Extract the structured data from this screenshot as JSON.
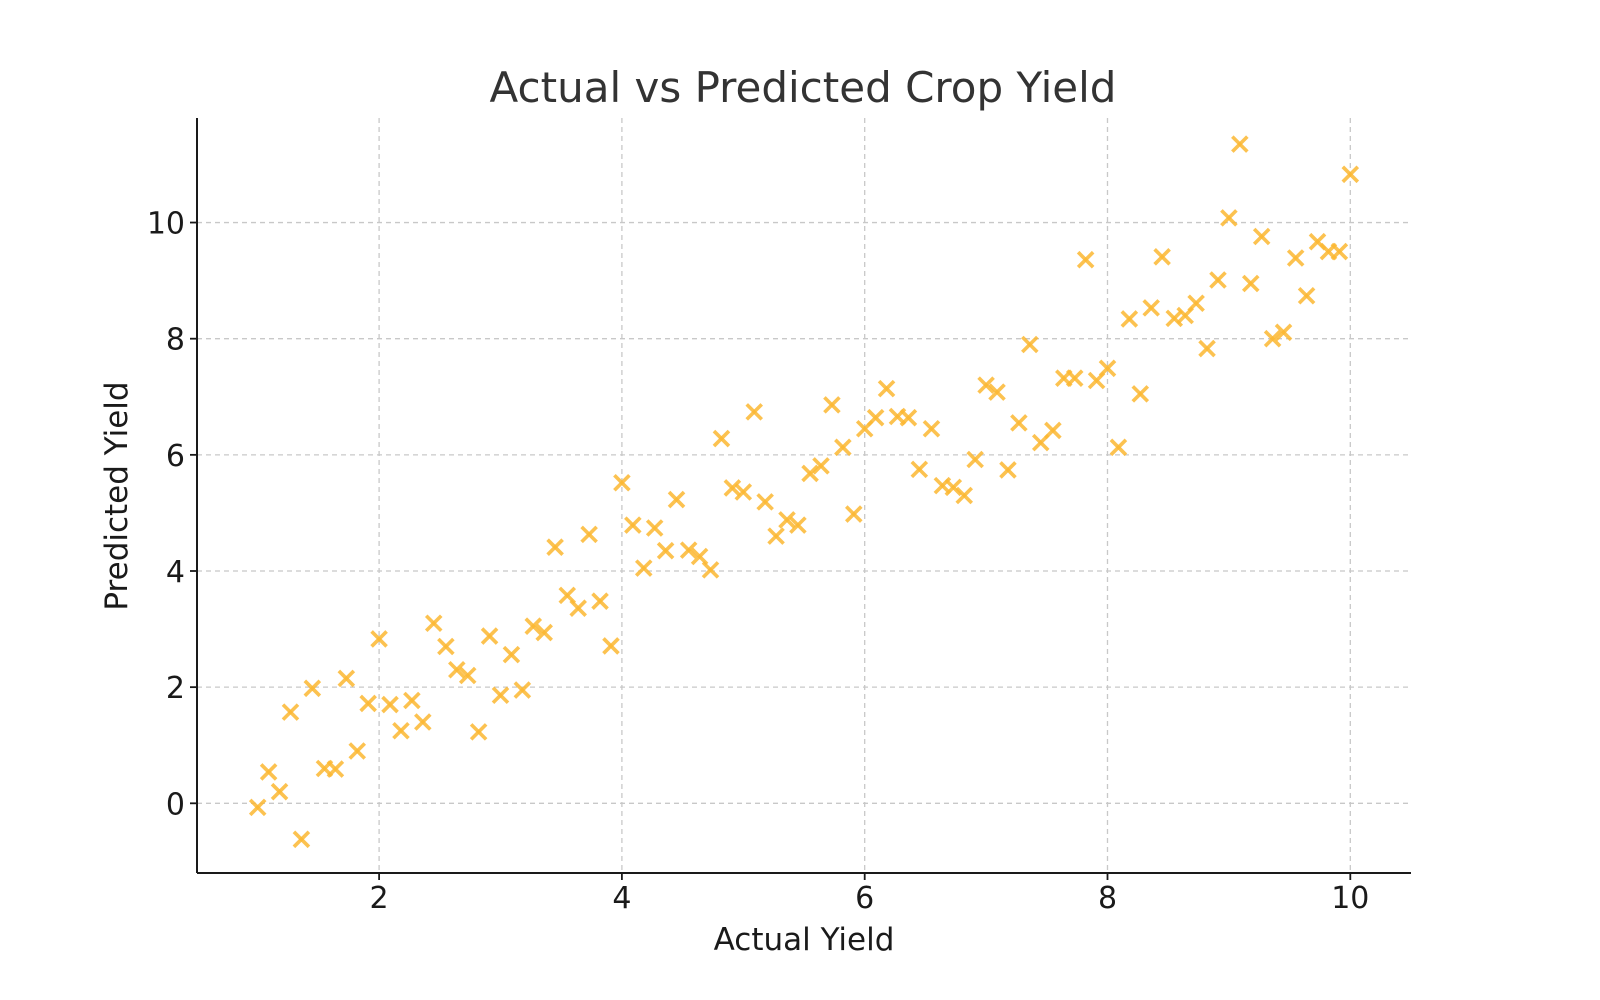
{
  "chart_data": {
    "type": "scatter",
    "title": "Actual vs Predicted Crop Yield",
    "xlabel": "Actual Yield",
    "ylabel": "Predicted Yield",
    "xlim": [
      0.5,
      10.5
    ],
    "ylim": [
      -1.2,
      11.8
    ],
    "xticks": [
      2,
      4,
      6,
      8,
      10
    ],
    "yticks": [
      0,
      2,
      4,
      6,
      8,
      10
    ],
    "grid": true,
    "marker": "x",
    "color": "#FBB731",
    "series": [
      {
        "x": [
          1.0,
          1.09,
          1.18,
          1.27,
          1.36,
          1.45,
          1.55,
          1.64,
          1.73,
          1.82,
          1.91,
          2.0,
          2.09,
          2.18,
          2.27,
          2.36,
          2.45,
          2.55,
          2.64,
          2.73,
          2.82,
          2.91,
          3.0,
          3.09,
          3.18,
          3.27,
          3.36,
          3.45,
          3.55,
          3.64,
          3.73,
          3.82,
          3.91,
          4.0,
          4.09,
          4.18,
          4.27,
          4.36,
          4.45,
          4.55,
          4.64,
          4.73,
          4.82,
          4.91,
          5.0,
          5.09,
          5.18,
          5.27,
          5.36,
          5.45,
          5.55,
          5.64,
          5.73,
          5.82,
          5.91,
          6.0,
          6.09,
          6.18,
          6.27,
          6.36,
          6.45,
          6.55,
          6.64,
          6.73,
          6.82,
          6.91,
          7.0,
          7.09,
          7.18,
          7.27,
          7.36,
          7.45,
          7.55,
          7.64,
          7.73,
          7.82,
          7.91,
          8.0,
          8.09,
          8.18,
          8.27,
          8.36,
          8.45,
          8.55,
          8.64,
          8.73,
          8.82,
          8.91,
          9.0,
          9.09,
          9.18,
          9.27,
          9.36,
          9.45,
          9.55,
          9.64,
          9.73,
          9.82,
          9.91,
          10.0
        ],
        "y": [
          -0.07,
          0.54,
          0.2,
          1.57,
          -0.62,
          1.98,
          0.6,
          0.59,
          2.15,
          0.9,
          1.72,
          2.83,
          1.7,
          1.25,
          1.77,
          1.4,
          3.1,
          2.7,
          2.3,
          2.2,
          1.23,
          2.88,
          1.86,
          2.56,
          1.95,
          3.05,
          2.94,
          4.41,
          3.58,
          3.36,
          4.63,
          3.48,
          2.71,
          5.52,
          4.79,
          4.05,
          4.74,
          4.35,
          5.23,
          4.36,
          4.25,
          4.02,
          6.28,
          5.43,
          5.36,
          6.74,
          5.19,
          4.6,
          4.88,
          4.79,
          5.68,
          5.81,
          6.86,
          6.13,
          4.98,
          6.45,
          6.64,
          7.14,
          6.66,
          6.64,
          5.75,
          6.45,
          5.47,
          5.44,
          5.3,
          5.92,
          7.2,
          7.08,
          5.74,
          6.55,
          7.9,
          6.21,
          6.42,
          7.32,
          7.32,
          9.36,
          7.28,
          7.49,
          6.13,
          8.34,
          7.05,
          8.53,
          9.41,
          8.35,
          8.4,
          8.61,
          7.83,
          9.01,
          10.08,
          11.35,
          8.95,
          9.76,
          8.0,
          8.11,
          9.39,
          8.74,
          9.67,
          9.5,
          9.5,
          10.83
        ]
      }
    ]
  }
}
